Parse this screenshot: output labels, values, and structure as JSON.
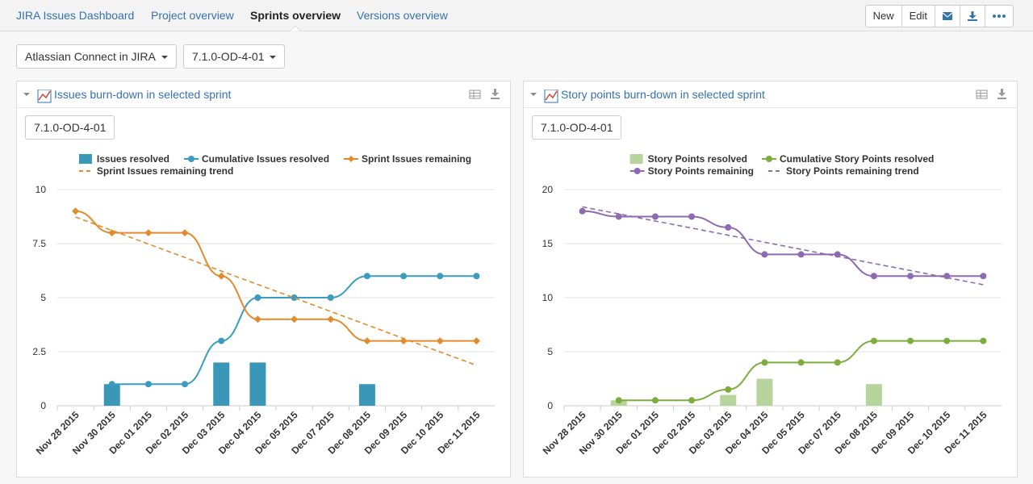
{
  "nav": {
    "tabs": [
      "JIRA Issues Dashboard",
      "Project overview",
      "Sprints overview",
      "Versions overview"
    ],
    "active": 2
  },
  "toolbar": {
    "buttons": [
      "New",
      "Edit"
    ]
  },
  "filters": [
    "Atlassian Connect in JIRA",
    "7.1.0-OD-4-01"
  ],
  "chart_data": [
    {
      "type": "combo",
      "title": "Issues burn-down in selected sprint",
      "sprint": "7.1.0-OD-4-01",
      "categories": [
        "Nov 28 2015",
        "Nov 30 2015",
        "Dec 01 2015",
        "Dec 02 2015",
        "Dec 03 2015",
        "Dec 04 2015",
        "Dec 05 2015",
        "Dec 07 2015",
        "Dec 08 2015",
        "Dec 09 2015",
        "Dec 10 2015",
        "Dec 11 2015"
      ],
      "ylim": [
        0,
        10
      ],
      "yticks": [
        0,
        2.5,
        5,
        7.5,
        10
      ],
      "grid": true,
      "series": [
        {
          "name": "Issues resolved",
          "type": "bar",
          "color": "#3a97b8",
          "values": [
            null,
            1,
            null,
            null,
            2,
            2,
            null,
            null,
            1,
            null,
            null,
            null
          ]
        },
        {
          "name": "Cumulative Issues resolved",
          "type": "line",
          "marker": "circle",
          "color": "#3a9cc0",
          "values": [
            null,
            1,
            1,
            1,
            3,
            5,
            5,
            5,
            6,
            6,
            6,
            6
          ]
        },
        {
          "name": "Sprint Issues remaining",
          "type": "line",
          "marker": "diamond",
          "color": "#e38a2c",
          "values": [
            9,
            8,
            8,
            8,
            6,
            4,
            4,
            4,
            3,
            3,
            3,
            3
          ]
        },
        {
          "name": "Sprint Issues remaining trend",
          "type": "trend",
          "color": "#e38a2c",
          "values": [
            8.73,
            8.11,
            7.48,
            6.86,
            6.23,
            5.61,
            4.99,
            4.36,
            3.74,
            3.11,
            2.49,
            1.87
          ]
        }
      ]
    },
    {
      "type": "combo",
      "title": "Story points burn-down in selected sprint",
      "sprint": "7.1.0-OD-4-01",
      "categories": [
        "Nov 28 2015",
        "Nov 30 2015",
        "Dec 01 2015",
        "Dec 02 2015",
        "Dec 03 2015",
        "Dec 04 2015",
        "Dec 05 2015",
        "Dec 07 2015",
        "Dec 08 2015",
        "Dec 09 2015",
        "Dec 10 2015",
        "Dec 11 2015"
      ],
      "ylim": [
        0,
        20
      ],
      "yticks": [
        0,
        5,
        10,
        15,
        20
      ],
      "grid": true,
      "series": [
        {
          "name": "Story Points resolved",
          "type": "bar",
          "color": "#b6d49b",
          "values": [
            null,
            0.5,
            null,
            null,
            1,
            2.5,
            null,
            null,
            2,
            null,
            null,
            null
          ]
        },
        {
          "name": "Cumulative Story Points resolved",
          "type": "line",
          "marker": "circle",
          "color": "#7dad3c",
          "values": [
            null,
            0.5,
            0.5,
            0.5,
            1.5,
            4,
            4,
            4,
            6,
            6,
            6,
            6
          ]
        },
        {
          "name": "Story Points remaining",
          "type": "line",
          "marker": "circle",
          "color": "#8e6bb0",
          "values": [
            18,
            17.5,
            17.5,
            17.5,
            16.5,
            14,
            14,
            14,
            12,
            12,
            12,
            12
          ]
        },
        {
          "name": "Story Points remaining trend",
          "type": "trend",
          "color": "#8e6bb0",
          "values": [
            18.4,
            17.75,
            17.09,
            16.44,
            15.78,
            15.13,
            14.47,
            13.82,
            13.16,
            12.51,
            11.85,
            11.2
          ]
        }
      ]
    }
  ]
}
